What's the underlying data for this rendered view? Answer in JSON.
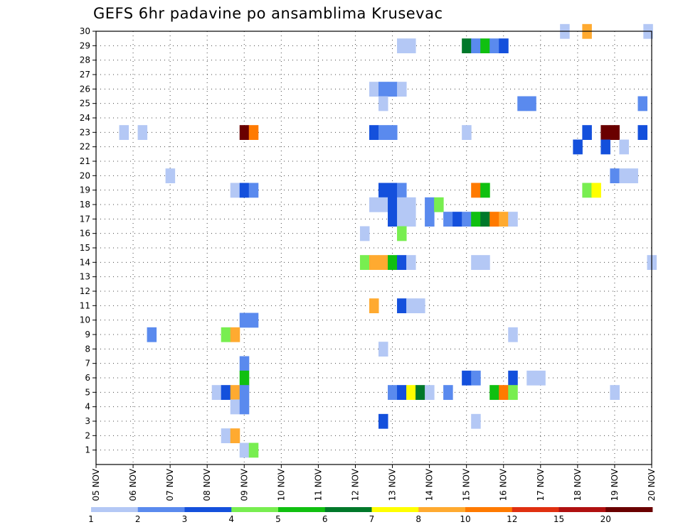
{
  "chart_data": {
    "type": "heatmap",
    "title": "GEFS 6hr padavine po ansamblima Krusevac",
    "y_axis": {
      "label": "",
      "min": 0,
      "max": 30,
      "ticks": [
        1,
        2,
        3,
        4,
        5,
        6,
        7,
        8,
        9,
        10,
        11,
        12,
        13,
        14,
        15,
        16,
        17,
        18,
        19,
        20,
        21,
        22,
        23,
        24,
        25,
        26,
        27,
        28,
        29,
        30
      ]
    },
    "x_axis": {
      "label": "",
      "ticks": [
        "05 NOV",
        "06 NOV",
        "07 NOV",
        "08 NOV",
        "09 NOV",
        "10 NOV",
        "11 NOV",
        "12 NOV",
        "13 NOV",
        "14 NOV",
        "15 NOV",
        "16 NOV",
        "17 NOV",
        "18 NOV",
        "19 NOV",
        "20 NOV"
      ]
    },
    "grid": true,
    "legend": {
      "placement": "bottom",
      "labels": [
        "1",
        "2",
        "3",
        "4",
        "5",
        "6",
        "7",
        "8",
        "10",
        "12",
        "15",
        "20"
      ],
      "colors": [
        "#b4c8f5",
        "#5a8aee",
        "#1450dc",
        "#78ee50",
        "#10c010",
        "#00782a",
        "#ffff00",
        "#ffaa30",
        "#ff7a00",
        "#e03010",
        "#b01010",
        "#6a0000"
      ]
    },
    "cells": [
      {
        "member": 30,
        "day": 12.65,
        "level": 1
      },
      {
        "member": 30,
        "day": 13.25,
        "level": 8
      },
      {
        "member": 30,
        "day": 14.9,
        "level": 1
      },
      {
        "member": 29,
        "day": 8.25,
        "level": 1
      },
      {
        "member": 29,
        "day": 8.5,
        "level": 1
      },
      {
        "member": 29,
        "day": 10.0,
        "level": 6
      },
      {
        "member": 29,
        "day": 10.25,
        "level": 2
      },
      {
        "member": 29,
        "day": 10.5,
        "level": 5
      },
      {
        "member": 29,
        "day": 10.75,
        "level": 2
      },
      {
        "member": 29,
        "day": 11.0,
        "level": 3
      },
      {
        "member": 26,
        "day": 7.5,
        "level": 1
      },
      {
        "member": 26,
        "day": 7.75,
        "level": 2
      },
      {
        "member": 26,
        "day": 8.0,
        "level": 2
      },
      {
        "member": 26,
        "day": 8.25,
        "level": 1
      },
      {
        "member": 25,
        "day": 7.75,
        "level": 1
      },
      {
        "member": 25,
        "day": 11.5,
        "level": 2
      },
      {
        "member": 25,
        "day": 11.75,
        "level": 2
      },
      {
        "member": 25,
        "day": 14.75,
        "level": 2
      },
      {
        "member": 23,
        "day": 0.75,
        "level": 1
      },
      {
        "member": 23,
        "day": 1.25,
        "level": 1
      },
      {
        "member": 23,
        "day": 4.0,
        "level": 20
      },
      {
        "member": 23,
        "day": 4.25,
        "level": 10
      },
      {
        "member": 23,
        "day": 7.5,
        "level": 3
      },
      {
        "member": 23,
        "day": 7.75,
        "level": 2
      },
      {
        "member": 23,
        "day": 8.0,
        "level": 2
      },
      {
        "member": 23,
        "day": 10.0,
        "level": 1
      },
      {
        "member": 23,
        "day": 13.25,
        "level": 3
      },
      {
        "member": 23,
        "day": 13.75,
        "level": 20
      },
      {
        "member": 23,
        "day": 14.0,
        "level": 20
      },
      {
        "member": 23,
        "day": 14.75,
        "level": 3
      },
      {
        "member": 22,
        "day": 13.0,
        "level": 3
      },
      {
        "member": 22,
        "day": 13.75,
        "level": 3
      },
      {
        "member": 22,
        "day": 14.25,
        "level": 1
      },
      {
        "member": 20,
        "day": 2.0,
        "level": 1
      },
      {
        "member": 20,
        "day": 14.0,
        "level": 2
      },
      {
        "member": 20,
        "day": 14.25,
        "level": 1
      },
      {
        "member": 20,
        "day": 14.5,
        "level": 1
      },
      {
        "member": 19,
        "day": 3.75,
        "level": 1
      },
      {
        "member": 19,
        "day": 4.0,
        "level": 3
      },
      {
        "member": 19,
        "day": 4.25,
        "level": 2
      },
      {
        "member": 19,
        "day": 7.75,
        "level": 3
      },
      {
        "member": 19,
        "day": 8.0,
        "level": 3
      },
      {
        "member": 19,
        "day": 8.25,
        "level": 2
      },
      {
        "member": 19,
        "day": 10.25,
        "level": 10
      },
      {
        "member": 19,
        "day": 10.5,
        "level": 5
      },
      {
        "member": 19,
        "day": 13.25,
        "level": 4
      },
      {
        "member": 19,
        "day": 13.5,
        "level": 7
      },
      {
        "member": 18,
        "day": 7.5,
        "level": 1
      },
      {
        "member": 18,
        "day": 7.75,
        "level": 1
      },
      {
        "member": 18,
        "day": 8.0,
        "level": 3
      },
      {
        "member": 18,
        "day": 8.25,
        "level": 1
      },
      {
        "member": 18,
        "day": 8.5,
        "level": 1
      },
      {
        "member": 18,
        "day": 9.0,
        "level": 2
      },
      {
        "member": 18,
        "day": 9.25,
        "level": 4
      },
      {
        "member": 17,
        "day": 8.0,
        "level": 3
      },
      {
        "member": 17,
        "day": 8.25,
        "level": 1
      },
      {
        "member": 17,
        "day": 8.5,
        "level": 1
      },
      {
        "member": 17,
        "day": 9.0,
        "level": 2
      },
      {
        "member": 17,
        "day": 9.5,
        "level": 2
      },
      {
        "member": 17,
        "day": 9.75,
        "level": 3
      },
      {
        "member": 17,
        "day": 10.0,
        "level": 2
      },
      {
        "member": 17,
        "day": 10.25,
        "level": 5
      },
      {
        "member": 17,
        "day": 10.5,
        "level": 6
      },
      {
        "member": 17,
        "day": 10.75,
        "level": 10
      },
      {
        "member": 17,
        "day": 11.0,
        "level": 8
      },
      {
        "member": 17,
        "day": 11.25,
        "level": 1
      },
      {
        "member": 16,
        "day": 7.25,
        "level": 1
      },
      {
        "member": 16,
        "day": 8.25,
        "level": 4
      },
      {
        "member": 14,
        "day": 7.25,
        "level": 4
      },
      {
        "member": 14,
        "day": 7.5,
        "level": 8
      },
      {
        "member": 14,
        "day": 7.75,
        "level": 8
      },
      {
        "member": 14,
        "day": 8.0,
        "level": 5
      },
      {
        "member": 14,
        "day": 8.25,
        "level": 3
      },
      {
        "member": 14,
        "day": 8.5,
        "level": 1
      },
      {
        "member": 14,
        "day": 10.25,
        "level": 1
      },
      {
        "member": 14,
        "day": 10.5,
        "level": 1
      },
      {
        "member": 14,
        "day": 15.0,
        "level": 1
      },
      {
        "member": 11,
        "day": 7.5,
        "level": 8
      },
      {
        "member": 11,
        "day": 8.25,
        "level": 3
      },
      {
        "member": 11,
        "day": 8.5,
        "level": 1
      },
      {
        "member": 11,
        "day": 8.75,
        "level": 1
      },
      {
        "member": 10,
        "day": 4.0,
        "level": 2
      },
      {
        "member": 10,
        "day": 4.25,
        "level": 2
      },
      {
        "member": 9,
        "day": 1.5,
        "level": 2
      },
      {
        "member": 9,
        "day": 3.5,
        "level": 4
      },
      {
        "member": 9,
        "day": 3.75,
        "level": 8
      },
      {
        "member": 9,
        "day": 11.25,
        "level": 1
      },
      {
        "member": 8,
        "day": 7.75,
        "level": 1
      },
      {
        "member": 7,
        "day": 4.0,
        "level": 2
      },
      {
        "member": 6,
        "day": 4.0,
        "level": 5
      },
      {
        "member": 6,
        "day": 10.0,
        "level": 3
      },
      {
        "member": 6,
        "day": 10.25,
        "level": 2
      },
      {
        "member": 6,
        "day": 11.25,
        "level": 3
      },
      {
        "member": 6,
        "day": 11.75,
        "level": 1
      },
      {
        "member": 6,
        "day": 12.0,
        "level": 1
      },
      {
        "member": 5,
        "day": 3.25,
        "level": 1
      },
      {
        "member": 5,
        "day": 3.5,
        "level": 3
      },
      {
        "member": 5,
        "day": 3.75,
        "level": 8
      },
      {
        "member": 5,
        "day": 4.0,
        "level": 2
      },
      {
        "member": 5,
        "day": 8.0,
        "level": 2
      },
      {
        "member": 5,
        "day": 8.25,
        "level": 3
      },
      {
        "member": 5,
        "day": 8.5,
        "level": 7
      },
      {
        "member": 5,
        "day": 8.75,
        "level": 6
      },
      {
        "member": 5,
        "day": 9.0,
        "level": 1
      },
      {
        "member": 5,
        "day": 9.5,
        "level": 2
      },
      {
        "member": 5,
        "day": 10.75,
        "level": 5
      },
      {
        "member": 5,
        "day": 11.0,
        "level": 10
      },
      {
        "member": 5,
        "day": 11.25,
        "level": 4
      },
      {
        "member": 5,
        "day": 14.0,
        "level": 1
      },
      {
        "member": 4,
        "day": 3.75,
        "level": 1
      },
      {
        "member": 4,
        "day": 4.0,
        "level": 2
      },
      {
        "member": 3,
        "day": 7.75,
        "level": 3
      },
      {
        "member": 3,
        "day": 10.25,
        "level": 1
      },
      {
        "member": 2,
        "day": 3.5,
        "level": 1
      },
      {
        "member": 2,
        "day": 3.75,
        "level": 8
      },
      {
        "member": 1,
        "day": 4.0,
        "level": 1
      },
      {
        "member": 1,
        "day": 4.25,
        "level": 4
      }
    ]
  }
}
